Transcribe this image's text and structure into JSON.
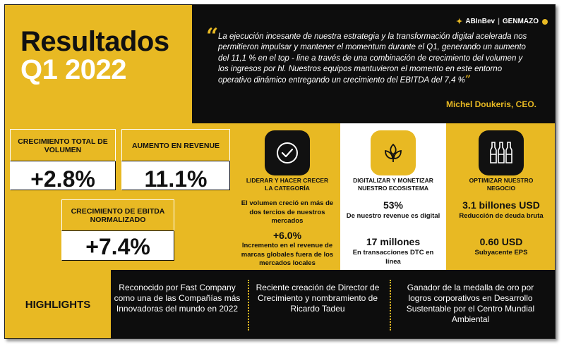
{
  "title": {
    "line1": "Resultados",
    "line2": "Q1 2022"
  },
  "brand": {
    "left": "ABInBev",
    "separator": "|",
    "right": "GENMAZO"
  },
  "quote": {
    "text": "La ejecución incesante de nuestra estrategia y la transformación digital acelerada nos permitieron impulsar y mantener el momentum durante el Q1, generando un aumento del 11,1 % en el top - line a través de una combinación de crecimiento del volumen y los ingresos por hl. Nuestros equipos mantuvieron el momento en este entorno operativo dinámico entregando un crecimiento del EBITDA del 7,4 %",
    "open_mark": "“",
    "close_mark": "”",
    "author": "Michel Doukeris, CEO."
  },
  "metrics": [
    {
      "label": "CRECIMIENTO TOTAL DE VOLUMEN",
      "value": "+2.8%"
    },
    {
      "label": "AUMENTO EN REVENUE",
      "value": "11.1%"
    },
    {
      "label": "CRECIMIENTO DE EBITDA NORMALIZADO",
      "value": "+7.4%"
    }
  ],
  "columns": [
    {
      "icon": "checkmark-circle-icon",
      "title": "LIDERAR Y HACER CRECER LA CATEGORÍA",
      "text1": "El volumen creció en más de dos tercios de nuestros mercados",
      "big": "+6.0%",
      "text2": "Incremento en el revenue de marcas globales fuera de los mercados locales"
    },
    {
      "icon": "sprout-icon",
      "title": "DIGITALIZAR Y MONETIZAR NUESTRO ECOSISTEMA",
      "big1": "53%",
      "text1": "De nuestro revenue es digital",
      "big2": "17 millones",
      "text2": "En transacciones DTC en línea"
    },
    {
      "icon": "bottles-icon",
      "title": "OPTIMIZAR NUESTRO NEGOCIO",
      "big1": "3.1 billones USD",
      "text1": "Reducción de deuda bruta",
      "big2": "0.60 USD",
      "text2": "Subyacente EPS"
    }
  ],
  "highlights": {
    "label": "HIGHLIGHTS",
    "items": [
      "Reconocido por Fast Company como una de las Compañías más Innovadoras del mundo en 2022",
      "Reciente creación de Director de Crecimiento y nombramiento de Ricardo Tadeu",
      "Ganador de la medalla de oro por logros corporativos en Desarrollo Sustentable por el Centro Mundial Ambiental"
    ]
  },
  "colors": {
    "accent": "#e8b923",
    "dark": "#0d0d0d",
    "light": "#ffffff"
  }
}
